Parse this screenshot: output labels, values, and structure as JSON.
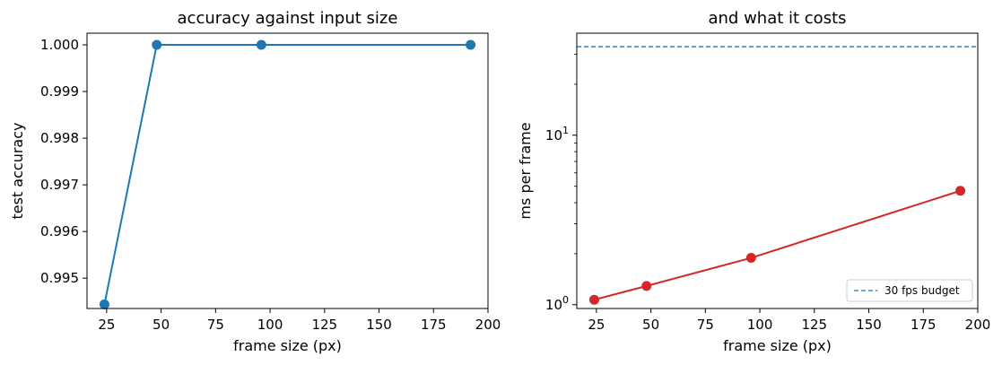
{
  "chart_data": [
    {
      "type": "line",
      "title": "accuracy against input size",
      "xlabel": "frame size (px)",
      "ylabel": "test accuracy",
      "xlim": [
        16,
        200
      ],
      "ylim": [
        0.99435,
        1.00025
      ],
      "xticks": [
        25,
        50,
        75,
        100,
        125,
        150,
        175,
        200
      ],
      "yticks": [
        0.995,
        0.996,
        0.997,
        0.998,
        0.999,
        1.0
      ],
      "ytick_labels": [
        "0.995",
        "0.996",
        "0.997",
        "0.998",
        "0.999",
        "1.000"
      ],
      "grid": false,
      "series": [
        {
          "x": [
            24,
            48,
            96,
            192
          ],
          "y": [
            0.99444,
            1.0,
            1.0,
            1.0
          ],
          "color": "#1f77b4",
          "marker": "circle"
        }
      ]
    },
    {
      "type": "line",
      "title": "and what it costs",
      "xlabel": "frame size (px)",
      "ylabel": "ms per frame",
      "xlim": [
        16,
        200
      ],
      "yscale": "log",
      "ylim": [
        0.95,
        40
      ],
      "xticks": [
        25,
        50,
        75,
        100,
        125,
        150,
        175,
        200
      ],
      "yticks": [
        1,
        10
      ],
      "ytick_labels": [
        {
          "base": "10",
          "exp": "0"
        },
        {
          "base": "10",
          "exp": "1"
        }
      ],
      "grid": false,
      "legend_position": "lower-right",
      "series": [
        {
          "x": [
            24,
            48,
            96,
            192
          ],
          "y": [
            1.07,
            1.29,
            1.89,
            4.7
          ],
          "color": "#d62728",
          "marker": "circle"
        }
      ],
      "reference_lines": [
        {
          "name": "30 fps budget",
          "y": 33.3,
          "color": "#1f77b4",
          "style": "dashed"
        }
      ]
    }
  ]
}
